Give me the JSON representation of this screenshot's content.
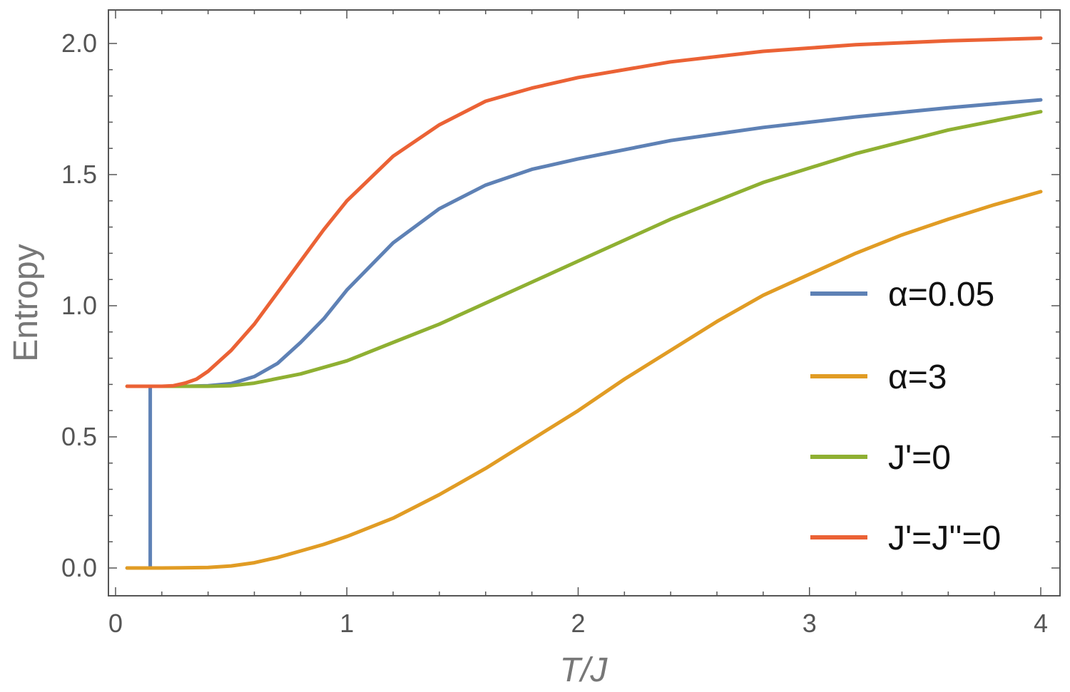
{
  "chart_data": {
    "type": "line",
    "xlabel": "T/J",
    "ylabel": "Entropy",
    "xlim": [
      0,
      4
    ],
    "ylim": [
      -0.1,
      2.12
    ],
    "xticks": [
      {
        "value": 0,
        "label": "0"
      },
      {
        "value": 1,
        "label": "1"
      },
      {
        "value": 2,
        "label": "2"
      },
      {
        "value": 3,
        "label": "3"
      },
      {
        "value": 4,
        "label": "4"
      }
    ],
    "yticks": [
      {
        "value": 0.0,
        "label": "0.0"
      },
      {
        "value": 0.5,
        "label": "0.5"
      },
      {
        "value": 1.0,
        "label": "1.0"
      },
      {
        "value": 1.5,
        "label": "1.5"
      },
      {
        "value": 2.0,
        "label": "2.0"
      }
    ],
    "legend_position": "right",
    "series": [
      {
        "name": "α=0.05",
        "color": "#5E81B5",
        "x": [
          0.05,
          0.15,
          0.15,
          0.2,
          0.3,
          0.4,
          0.5,
          0.6,
          0.7,
          0.8,
          0.9,
          1.0,
          1.2,
          1.4,
          1.6,
          1.8,
          2.0,
          2.4,
          2.8,
          3.2,
          3.6,
          4.0
        ],
        "y": [
          0.0,
          0.0,
          0.693,
          0.693,
          0.693,
          0.695,
          0.703,
          0.73,
          0.78,
          0.86,
          0.95,
          1.06,
          1.24,
          1.37,
          1.46,
          1.52,
          1.56,
          1.63,
          1.68,
          1.72,
          1.755,
          1.785
        ]
      },
      {
        "name": "α=3",
        "color": "#E19C24",
        "x": [
          0.05,
          0.2,
          0.4,
          0.5,
          0.6,
          0.7,
          0.8,
          0.9,
          1.0,
          1.2,
          1.4,
          1.6,
          1.8,
          2.0,
          2.2,
          2.4,
          2.6,
          2.8,
          3.0,
          3.2,
          3.4,
          3.6,
          3.8,
          4.0
        ],
        "y": [
          0.0,
          0.0,
          0.002,
          0.008,
          0.02,
          0.04,
          0.065,
          0.09,
          0.12,
          0.19,
          0.28,
          0.38,
          0.49,
          0.6,
          0.72,
          0.83,
          0.94,
          1.04,
          1.12,
          1.2,
          1.27,
          1.33,
          1.385,
          1.435
        ]
      },
      {
        "name": "J'=0",
        "color": "#8FB032",
        "x": [
          0.05,
          0.2,
          0.3,
          0.4,
          0.5,
          0.6,
          0.8,
          1.0,
          1.2,
          1.4,
          1.6,
          1.8,
          2.0,
          2.4,
          2.8,
          3.2,
          3.6,
          4.0
        ],
        "y": [
          0.693,
          0.693,
          0.693,
          0.693,
          0.695,
          0.705,
          0.74,
          0.79,
          0.86,
          0.93,
          1.01,
          1.09,
          1.17,
          1.33,
          1.47,
          1.58,
          1.67,
          1.74
        ]
      },
      {
        "name": "J'=J''=0",
        "color": "#EB6235",
        "x": [
          0.05,
          0.2,
          0.25,
          0.3,
          0.35,
          0.4,
          0.5,
          0.6,
          0.7,
          0.8,
          0.9,
          1.0,
          1.2,
          1.4,
          1.6,
          1.8,
          2.0,
          2.4,
          2.8,
          3.2,
          3.6,
          4.0
        ],
        "y": [
          0.693,
          0.693,
          0.695,
          0.705,
          0.72,
          0.75,
          0.83,
          0.93,
          1.05,
          1.17,
          1.29,
          1.4,
          1.57,
          1.69,
          1.78,
          1.83,
          1.87,
          1.93,
          1.97,
          1.995,
          2.01,
          2.02
        ]
      }
    ]
  }
}
